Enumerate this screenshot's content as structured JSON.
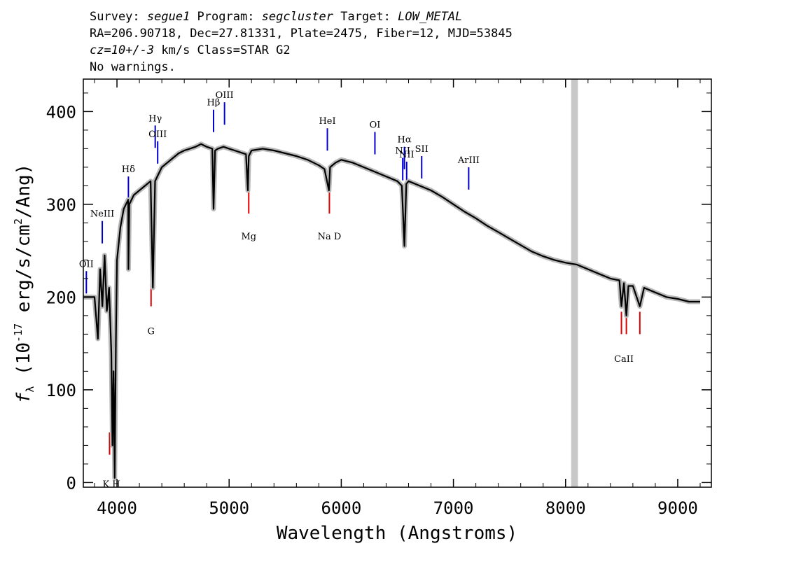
{
  "header": {
    "line1": {
      "survey_label": "Survey: ",
      "survey": "segue1",
      "program_label": " Program: ",
      "program": "segcluster",
      "target_label": " Target: ",
      "target": "LOW_METAL"
    },
    "line2": "RA=206.90718, Dec=27.81331, Plate=2475, Fiber=12, MJD=53845",
    "line3": {
      "cz": "cz=10+/-3",
      "rest": " km/s Class=STAR G2"
    },
    "line4": "No warnings."
  },
  "colors": {
    "emission": "#0000cc",
    "absorption": "#dd0000",
    "spectrum": "#000000",
    "error": "#b8b8b8",
    "mask": "#c8c8c8"
  },
  "chart_data": {
    "type": "line",
    "xlabel": "Wavelength (Angstroms)",
    "ylabel": "f_λ (10^-17 erg/s/cm^2/Ang)",
    "ylabel_parts": {
      "f": "f",
      "sub": "λ",
      "pre": " (10",
      "exp1": "-17",
      "mid": " erg/s/cm",
      "exp2": "2",
      "post": "/Ang)"
    },
    "xlim": [
      3700,
      9300
    ],
    "ylim": [
      -5,
      435
    ],
    "xticks": [
      4000,
      5000,
      6000,
      7000,
      8000,
      9000
    ],
    "yticks": [
      0,
      100,
      200,
      300,
      400
    ],
    "masked_region": [
      8050,
      8110
    ],
    "series": [
      {
        "x": [
          3700,
          3800,
          3830,
          3850,
          3870,
          3890,
          3910,
          3930,
          3950,
          3960,
          3970,
          3980,
          3990,
          4000,
          4030,
          4060,
          4080,
          4100,
          4102,
          4110,
          4150,
          4200,
          4250,
          4300,
          4320,
          4340,
          4360,
          4380,
          4400,
          4450,
          4500,
          4550,
          4600,
          4650,
          4700,
          4750,
          4800,
          4850,
          4861,
          4875,
          4900,
          4950,
          5000,
          5050,
          5100,
          5150,
          5167,
          5175,
          5200,
          5300,
          5400,
          5500,
          5600,
          5700,
          5800,
          5850,
          5890,
          5900,
          5950,
          6000,
          6100,
          6200,
          6300,
          6400,
          6500,
          6540,
          6563,
          6580,
          6600,
          6700,
          6800,
          6900,
          7000,
          7100,
          7200,
          7300,
          7400,
          7500,
          7600,
          7700,
          7800,
          7900,
          8000,
          8100,
          8200,
          8300,
          8400,
          8480,
          8498,
          8520,
          8542,
          8560,
          8600,
          8662,
          8700,
          8800,
          8900,
          9000,
          9100,
          9200
        ],
        "y": [
          200,
          200,
          155,
          230,
          190,
          245,
          185,
          210,
          140,
          40,
          120,
          5,
          150,
          240,
          275,
          295,
          300,
          305,
          230,
          300,
          310,
          315,
          320,
          325,
          210,
          325,
          330,
          335,
          340,
          345,
          350,
          355,
          358,
          360,
          362,
          365,
          362,
          360,
          295,
          358,
          360,
          362,
          360,
          358,
          356,
          354,
          315,
          352,
          358,
          360,
          358,
          355,
          352,
          348,
          342,
          338,
          315,
          340,
          345,
          348,
          345,
          340,
          335,
          330,
          325,
          320,
          255,
          322,
          325,
          320,
          315,
          308,
          300,
          292,
          285,
          277,
          270,
          263,
          256,
          249,
          244,
          240,
          237,
          235,
          230,
          225,
          220,
          218,
          190,
          215,
          180,
          212,
          212,
          190,
          210,
          205,
          200,
          198,
          195,
          195
        ]
      }
    ],
    "emission_lines": [
      {
        "label": "NeIII",
        "wavelength": 3869,
        "ytop": 282
      },
      {
        "label": "OII",
        "wavelength": 3727,
        "ytop": 228
      },
      {
        "label": "Hδ",
        "wavelength": 4102,
        "ytop": 330
      },
      {
        "label": "Hγ",
        "wavelength": 4341,
        "ytop": 385
      },
      {
        "label": "OIII",
        "wavelength": 4363,
        "ytop": 368
      },
      {
        "label": "Hβ",
        "wavelength": 4861,
        "ytop": 402
      },
      {
        "label": "OIII",
        "wavelength": 4959,
        "ytop": 410
      },
      {
        "label": "HeI",
        "wavelength": 5876,
        "ytop": 382
      },
      {
        "label": "OI",
        "wavelength": 6300,
        "ytop": 378
      },
      {
        "label": "NII",
        "wavelength": 6548,
        "ytop": 350
      },
      {
        "label": "Hα",
        "wavelength": 6563,
        "ytop": 362
      },
      {
        "label": "NII",
        "wavelength": 6583,
        "ytop": 346
      },
      {
        "label": "SII",
        "wavelength": 6717,
        "ytop": 352
      },
      {
        "label": "ArIII",
        "wavelength": 7136,
        "ytop": 340
      }
    ],
    "absorption_lines": [
      {
        "label": "K",
        "wavelength": 3934,
        "ybot": 30
      },
      {
        "label": "H",
        "wavelength": 3969,
        "ybot": 30
      },
      {
        "label": "G",
        "wavelength": 4304,
        "ybot": 190
      },
      {
        "label": "Mg",
        "wavelength": 5175,
        "ybot": 290
      },
      {
        "label": "Na D",
        "wavelength": 5894,
        "ybot": 290
      },
      {
        "label": "CaII",
        "wavelength": 8498,
        "ybot": 160
      },
      {
        "label": "CaII",
        "wavelength": 8542,
        "ybot": 160
      },
      {
        "label": "CaII",
        "wavelength": 8662,
        "ybot": 160
      }
    ],
    "absorption_group_labels": [
      {
        "label": "K H",
        "wavelength": 3950,
        "y": -5
      },
      {
        "label": "G",
        "wavelength": 4304,
        "y": 160
      },
      {
        "label": "Mg",
        "wavelength": 5175,
        "y": 262
      },
      {
        "label": "Na D",
        "wavelength": 5894,
        "y": 262
      },
      {
        "label": "CaII",
        "wavelength": 8520,
        "y": 130
      }
    ]
  }
}
